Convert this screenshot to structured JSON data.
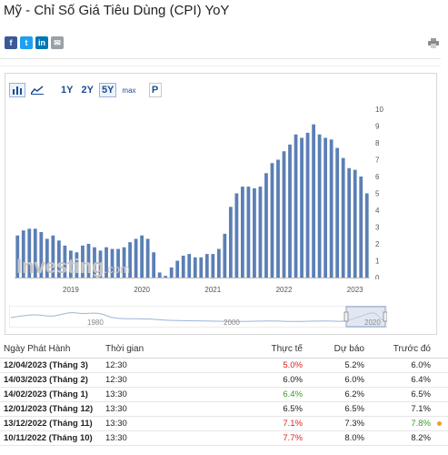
{
  "title": "Mỹ - Chỉ Số Giá Tiêu Dùng (CPI) YoY",
  "share": {
    "facebook": {
      "glyph": "f",
      "color": "#3b5998"
    },
    "twitter": {
      "glyph": "t",
      "color": "#1da1f2"
    },
    "linkedin": {
      "glyph": "in",
      "color": "#0077b5"
    },
    "email": {
      "glyph": "✉",
      "color": "#9aa0a6"
    }
  },
  "toolbar": {
    "bar_chart_icon": "bar-chart-icon",
    "line_chart_icon": "line-chart-icon",
    "range_1y": "1Y",
    "range_2y": "2Y",
    "range_5y": "5Y",
    "range_max": "max",
    "p_button": "P",
    "active_range": "5Y"
  },
  "watermark": {
    "brand": "Investing",
    "suffix": ".com"
  },
  "navigator": {
    "labels": [
      "1980",
      "2000",
      "2020"
    ]
  },
  "table": {
    "headers": {
      "date": "Ngày Phát Hành",
      "time": "Thời gian",
      "actual": "Thực tế",
      "forecast": "Dự báo",
      "previous": "Trước đó"
    },
    "rows": [
      {
        "date": "12/04/2023 (Tháng 3)",
        "time": "12:30",
        "actual": "5.0%",
        "actual_color": "#e02020",
        "forecast": "5.2%",
        "previous": "6.0%",
        "previous_color": "#222222",
        "dot": ""
      },
      {
        "date": "14/03/2023 (Tháng 2)",
        "time": "12:30",
        "actual": "6.0%",
        "actual_color": "#222222",
        "forecast": "6.0%",
        "previous": "6.4%",
        "previous_color": "#222222",
        "dot": ""
      },
      {
        "date": "14/02/2023 (Tháng 1)",
        "time": "13:30",
        "actual": "6.4%",
        "actual_color": "#3a9a2a",
        "forecast": "6.2%",
        "previous": "6.5%",
        "previous_color": "#222222",
        "dot": ""
      },
      {
        "date": "12/01/2023 (Tháng 12)",
        "time": "13:30",
        "actual": "6.5%",
        "actual_color": "#222222",
        "forecast": "6.5%",
        "previous": "7.1%",
        "previous_color": "#222222",
        "dot": ""
      },
      {
        "date": "13/12/2022 (Tháng 11)",
        "time": "13:30",
        "actual": "7.1%",
        "actual_color": "#e02020",
        "forecast": "7.3%",
        "previous": "7.8%",
        "previous_color": "#3a9a2a",
        "dot": "#f0a020"
      },
      {
        "date": "10/11/2022 (Tháng 10)",
        "time": "13:30",
        "actual": "7.7%",
        "actual_color": "#e02020",
        "forecast": "8.0%",
        "previous": "8.2%",
        "previous_color": "#222222",
        "dot": ""
      }
    ]
  },
  "chart_data": {
    "type": "bar",
    "title": "",
    "xlabel": "",
    "ylabel": "",
    "x_tick_labels": [
      "2019",
      "2020",
      "2021",
      "2022",
      "2023"
    ],
    "y_ticks": [
      0,
      1,
      2,
      3,
      4,
      5,
      6,
      7,
      8,
      9,
      10
    ],
    "ylim": [
      0,
      10
    ],
    "y_axis_side": "right",
    "grid": false,
    "bar_color": "#5b7fb5",
    "categories": [
      "2018-04",
      "2018-05",
      "2018-06",
      "2018-07",
      "2018-08",
      "2018-09",
      "2018-10",
      "2018-11",
      "2018-12",
      "2019-01",
      "2019-02",
      "2019-03",
      "2019-04",
      "2019-05",
      "2019-06",
      "2019-07",
      "2019-08",
      "2019-09",
      "2019-10",
      "2019-11",
      "2019-12",
      "2020-01",
      "2020-02",
      "2020-03",
      "2020-04",
      "2020-05",
      "2020-06",
      "2020-07",
      "2020-08",
      "2020-09",
      "2020-10",
      "2020-11",
      "2020-12",
      "2021-01",
      "2021-02",
      "2021-03",
      "2021-04",
      "2021-05",
      "2021-06",
      "2021-07",
      "2021-08",
      "2021-09",
      "2021-10",
      "2021-11",
      "2021-12",
      "2022-01",
      "2022-02",
      "2022-03",
      "2022-04",
      "2022-05",
      "2022-06",
      "2022-07",
      "2022-08",
      "2022-09",
      "2022-10",
      "2022-11",
      "2022-12",
      "2023-01",
      "2023-02",
      "2023-03"
    ],
    "values": [
      2.5,
      2.8,
      2.9,
      2.9,
      2.7,
      2.3,
      2.5,
      2.2,
      1.9,
      1.6,
      1.5,
      1.9,
      2.0,
      1.8,
      1.6,
      1.8,
      1.7,
      1.7,
      1.8,
      2.1,
      2.3,
      2.5,
      2.3,
      1.5,
      0.3,
      0.1,
      0.6,
      1.0,
      1.3,
      1.4,
      1.2,
      1.2,
      1.4,
      1.4,
      1.7,
      2.6,
      4.2,
      5.0,
      5.4,
      5.4,
      5.3,
      5.4,
      6.2,
      6.8,
      7.0,
      7.5,
      7.9,
      8.5,
      8.3,
      8.6,
      9.1,
      8.5,
      8.3,
      8.2,
      7.7,
      7.1,
      6.5,
      6.4,
      6.0,
      5.0
    ]
  }
}
